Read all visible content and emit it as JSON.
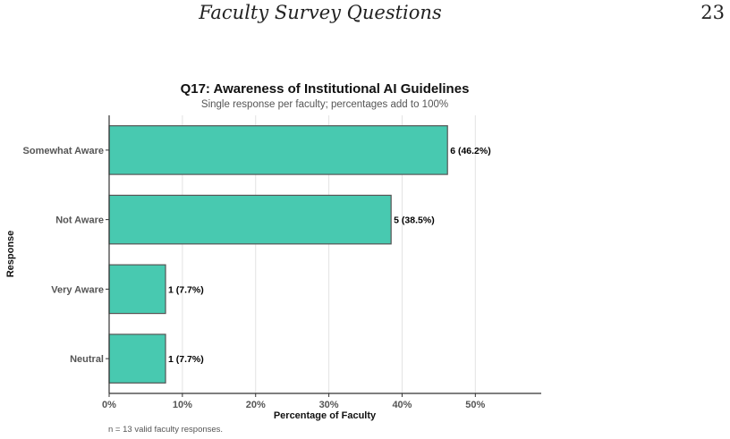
{
  "page": {
    "running_title": "Faculty Survey Questions",
    "page_number": "23"
  },
  "chart_data": {
    "type": "bar",
    "orientation": "horizontal",
    "title": "Q17: Awareness of Institutional AI Guidelines",
    "subtitle": "Single response per faculty; percentages add to 100%",
    "xlabel": "Percentage of Faculty",
    "ylabel": "Response",
    "categories": [
      "Somewhat Aware",
      "Not Aware",
      "Very Aware",
      "Neutral"
    ],
    "counts": [
      6,
      5,
      1,
      1
    ],
    "values": [
      46.2,
      38.5,
      7.7,
      7.7
    ],
    "data_labels": [
      "6 (46.2%)",
      "5 (38.5%)",
      "1 (7.7%)",
      "1 (7.7%)"
    ],
    "xlim": [
      0,
      59
    ],
    "xticks": [
      0,
      10,
      20,
      30,
      40,
      50
    ],
    "xtick_labels": [
      "0%",
      "10%",
      "20%",
      "30%",
      "40%",
      "50%"
    ],
    "grid": "vertical major",
    "bar_color": "#48c9b0",
    "bar_edge_color": "#555555",
    "caption": "n = 13 valid faculty responses."
  }
}
